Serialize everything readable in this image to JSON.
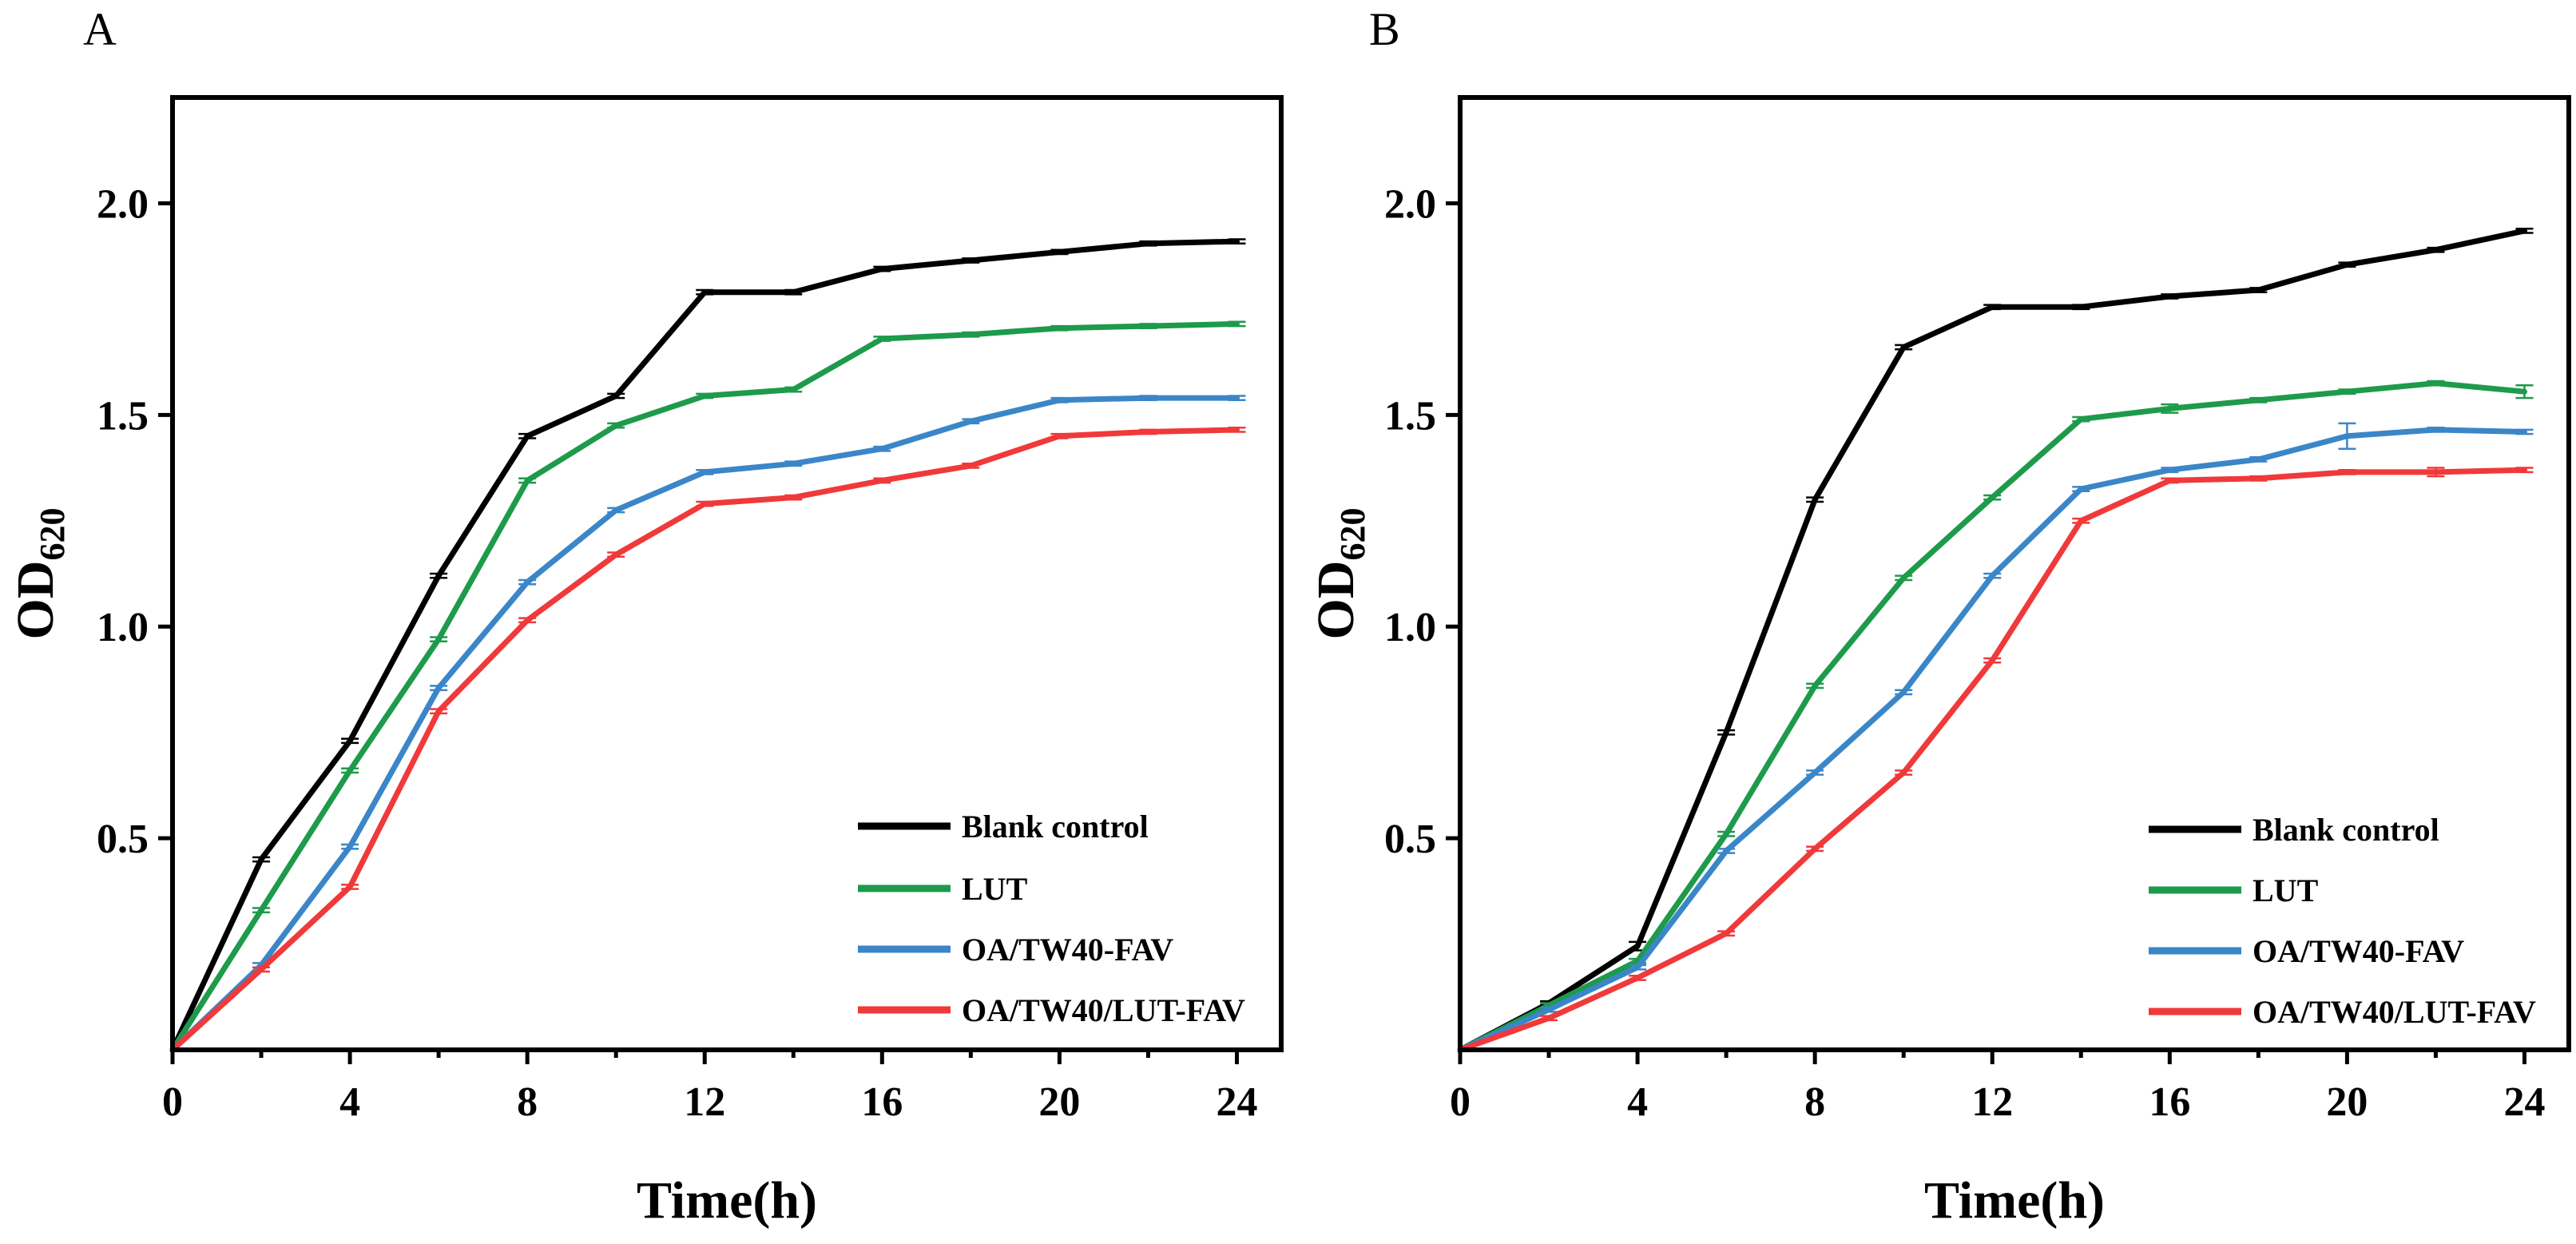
{
  "figure": {
    "panels": [
      "A",
      "B"
    ],
    "xlabel": "Time(h)",
    "ylabel_main": "OD",
    "ylabel_sub": "620"
  },
  "chart_data": [
    {
      "type": "line",
      "panel": "A",
      "title": "",
      "xlabel": "Time(h)",
      "ylabel": "OD620",
      "xlim": [
        0,
        25
      ],
      "ylim": [
        0,
        2.25
      ],
      "xticks": [
        0,
        4,
        8,
        12,
        16,
        20,
        24
      ],
      "xtick_labels": [
        "0",
        "4",
        "8",
        "12",
        "16",
        "20",
        "24"
      ],
      "yticks": [
        0.5,
        1.0,
        1.5,
        2.0
      ],
      "ytick_labels": [
        "0.5",
        "1.0",
        "1.5",
        "2.0"
      ],
      "grid": false,
      "legend_position": "bottom-right",
      "x": [
        0,
        2,
        4,
        6,
        8,
        10,
        12,
        14,
        16,
        18,
        20,
        22,
        24
      ],
      "series": [
        {
          "name": "Blank control",
          "color": "#000000",
          "values": [
            0.0,
            0.45,
            0.73,
            1.12,
            1.45,
            1.545,
            1.79,
            1.79,
            1.845,
            1.865,
            1.885,
            1.905,
            1.91
          ],
          "errors": [
            0,
            0.005,
            0.005,
            0.005,
            0.005,
            0.005,
            0.005,
            0.005,
            0.005,
            0.005,
            0.005,
            0.005,
            0.005
          ]
        },
        {
          "name": "LUT",
          "color": "#1e9a4b",
          "values": [
            0.0,
            0.33,
            0.66,
            0.97,
            1.345,
            1.475,
            1.545,
            1.56,
            1.68,
            1.69,
            1.705,
            1.71,
            1.715
          ],
          "errors": [
            0,
            0.005,
            0.005,
            0.005,
            0.005,
            0.005,
            0.005,
            0.005,
            0.005,
            0.005,
            0.005,
            0.005,
            0.005
          ]
        },
        {
          "name": "OA/TW40-FAV",
          "color": "#3a86c8",
          "values": [
            0.0,
            0.2,
            0.48,
            0.855,
            1.105,
            1.275,
            1.365,
            1.385,
            1.42,
            1.485,
            1.535,
            1.54,
            1.54
          ],
          "errors": [
            0,
            0.005,
            0.005,
            0.005,
            0.005,
            0.005,
            0.005,
            0.005,
            0.005,
            0.005,
            0.005,
            0.005,
            0.005
          ]
        },
        {
          "name": "OA/TW40/LUT-FAV",
          "color": "#f0393a",
          "values": [
            0.0,
            0.19,
            0.385,
            0.8,
            1.015,
            1.17,
            1.29,
            1.305,
            1.345,
            1.38,
            1.45,
            1.46,
            1.465
          ],
          "errors": [
            0,
            0.005,
            0.005,
            0.005,
            0.005,
            0.005,
            0.005,
            0.005,
            0.005,
            0.005,
            0.005,
            0.005,
            0.005
          ]
        }
      ]
    },
    {
      "type": "line",
      "panel": "B",
      "title": "",
      "xlabel": "Time(h)",
      "ylabel": "OD620",
      "xlim": [
        0,
        25
      ],
      "ylim": [
        0,
        2.25
      ],
      "xticks": [
        0,
        4,
        8,
        12,
        16,
        20,
        24
      ],
      "xtick_labels": [
        "0",
        "4",
        "8",
        "12",
        "16",
        "20",
        "24"
      ],
      "yticks": [
        0.5,
        1.0,
        1.5,
        2.0
      ],
      "ytick_labels": [
        "0.5",
        "1.0",
        "1.5",
        "2.0"
      ],
      "grid": false,
      "legend_position": "bottom-right",
      "x": [
        0,
        2,
        4,
        6,
        8,
        10,
        12,
        14,
        16,
        18,
        20,
        22,
        24
      ],
      "series": [
        {
          "name": "Blank control",
          "color": "#000000",
          "values": [
            0.0,
            0.11,
            0.245,
            0.75,
            1.3,
            1.66,
            1.755,
            1.755,
            1.78,
            1.795,
            1.855,
            1.89,
            1.935
          ],
          "errors": [
            0,
            0.005,
            0.01,
            0.005,
            0.005,
            0.005,
            0.005,
            0.005,
            0.005,
            0.005,
            0.005,
            0.005,
            0.005
          ]
        },
        {
          "name": "LUT",
          "color": "#1e9a4b",
          "values": [
            0.0,
            0.105,
            0.21,
            0.51,
            0.86,
            1.115,
            1.305,
            1.49,
            1.515,
            1.535,
            1.555,
            1.575,
            1.555
          ],
          "errors": [
            0,
            0.005,
            0.005,
            0.005,
            0.005,
            0.005,
            0.005,
            0.005,
            0.01,
            0.005,
            0.005,
            0.005,
            0.015
          ]
        },
        {
          "name": "OA/TW40-FAV",
          "color": "#3a86c8",
          "values": [
            0.0,
            0.095,
            0.195,
            0.47,
            0.655,
            0.845,
            1.12,
            1.325,
            1.37,
            1.395,
            1.45,
            1.465,
            1.46
          ],
          "errors": [
            0,
            0.005,
            0.005,
            0.005,
            0.005,
            0.005,
            0.005,
            0.005,
            0.005,
            0.005,
            0.03,
            0.005,
            0.005
          ]
        },
        {
          "name": "OA/TW40/LUT-FAV",
          "color": "#f0393a",
          "values": [
            0.0,
            0.075,
            0.17,
            0.275,
            0.475,
            0.655,
            0.92,
            1.25,
            1.345,
            1.35,
            1.365,
            1.365,
            1.37
          ],
          "errors": [
            0,
            0.005,
            0.005,
            0.005,
            0.005,
            0.005,
            0.005,
            0.005,
            0.005,
            0.005,
            0.005,
            0.01,
            0.005
          ]
        }
      ]
    }
  ]
}
